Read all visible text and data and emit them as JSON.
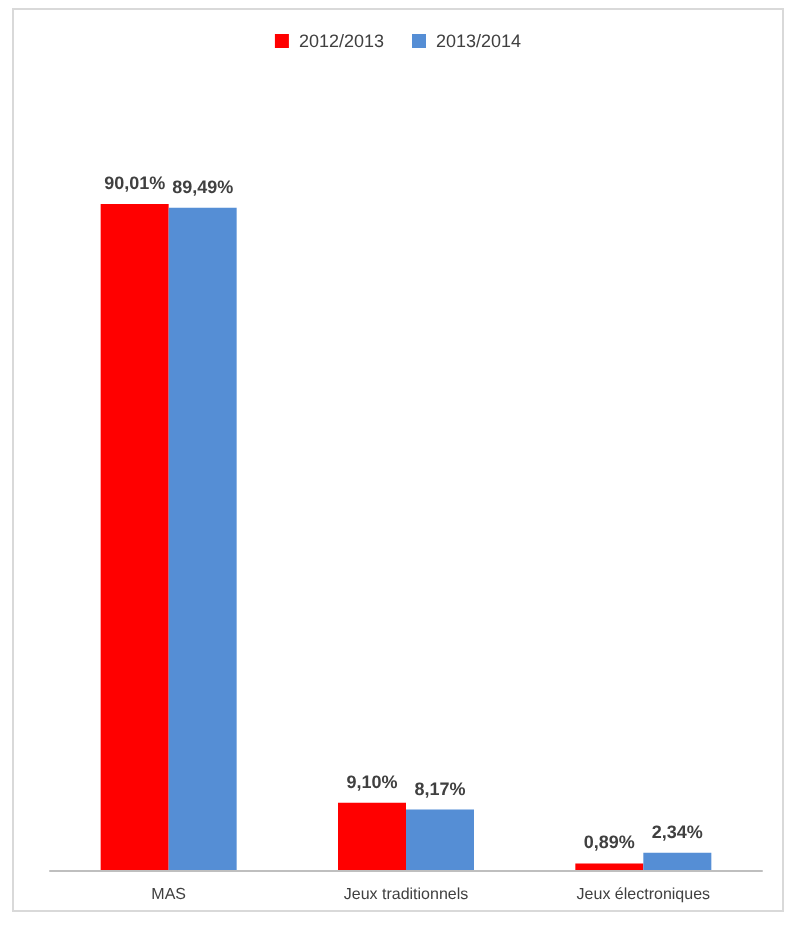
{
  "chart_data": {
    "type": "bar",
    "categories": [
      "MAS",
      "Jeux traditionnels",
      "Jeux électroniques"
    ],
    "series": [
      {
        "name": "2012/2013",
        "color": "#ff0000",
        "values": [
          90.01,
          9.1,
          0.89
        ],
        "value_labels": [
          "90,01%",
          "9,10%",
          "0,89%"
        ]
      },
      {
        "name": "2013/2014",
        "color": "#558ed5",
        "values": [
          89.49,
          8.17,
          2.34
        ],
        "value_labels": [
          "89,49%",
          "8,17%",
          "2,34%"
        ]
      }
    ],
    "legend": "top"
  }
}
